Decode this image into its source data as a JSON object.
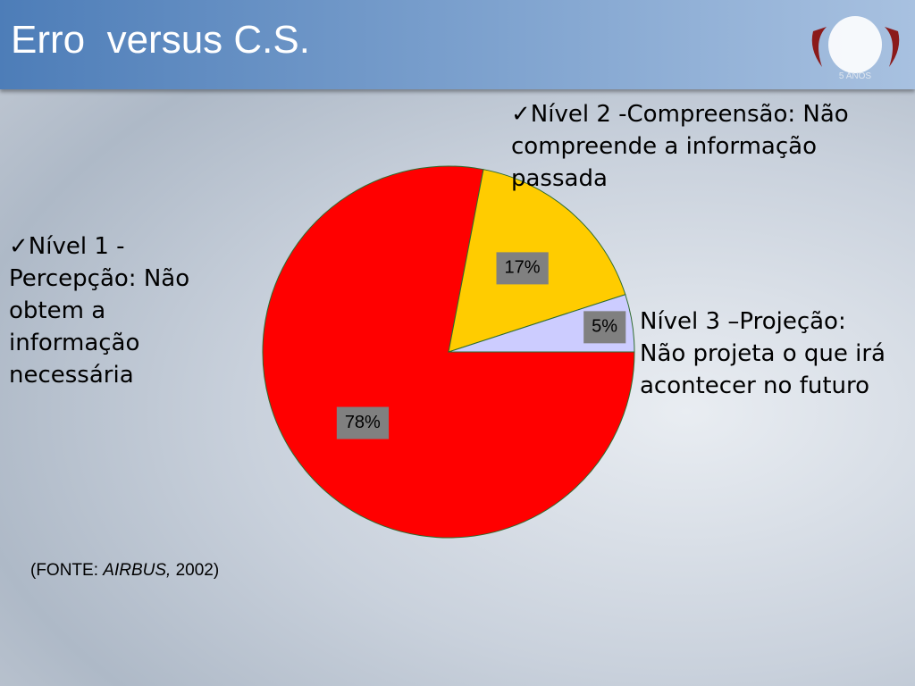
{
  "title": "Erro  versus C.S.",
  "logo_text": "5 ANOS",
  "chart_data": {
    "type": "pie",
    "categories": [
      "✓Nível 1 - Percepção: Não obtem a informação necessária",
      "✓Nível 2 -Compreensão: Não compreende a informação passada",
      "Nível 3 –Projeção: Não projeta o que irá acontecer no futuro"
    ],
    "values": [
      78,
      17,
      5
    ],
    "value_labels": [
      "78%",
      "17%",
      "5%"
    ],
    "colors": [
      "#ff0000",
      "#ffcc00",
      "#ccccff"
    ]
  },
  "source": {
    "label": "(FONTE:",
    "author": "AIRBUS,",
    "year": "2002)"
  }
}
